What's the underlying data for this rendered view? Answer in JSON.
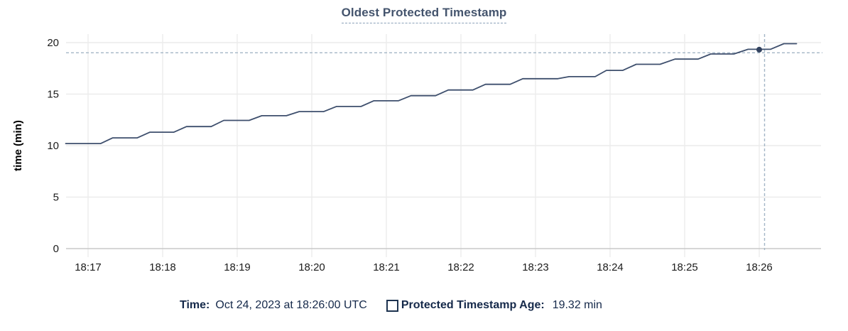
{
  "colors": {
    "line": "#3e4f6d",
    "dot": "#32425f",
    "grid": "#ececec",
    "axis": "#c9c9c9",
    "crosshair": "#a4b6c6",
    "title_text": "#44546d",
    "title_underline": "#8aa1b9",
    "tick_text": "#1c1c1c",
    "ylabel_text": "#000000",
    "legend_text": "#15294a",
    "checkbox_border": "#1d3350"
  },
  "legend": {
    "time_label": "Time:",
    "time_value": "Oct 24, 2023 at 18:26:00 UTC",
    "series_label": "Protected Timestamp Age:",
    "series_value": "19.32 min"
  },
  "chart_data": {
    "type": "line",
    "title": "Oldest Protected Timestamp",
    "xlabel": "",
    "ylabel": "time (min)",
    "y_ticks": [
      0,
      5,
      10,
      15,
      20
    ],
    "ylim": [
      0,
      21
    ],
    "grid": "on",
    "legend_position": "bottom",
    "x_tick_labels": [
      "18:17",
      "18:18",
      "18:19",
      "18:20",
      "18:21",
      "18:22",
      "18:23",
      "18:24",
      "18:25",
      "18:26"
    ],
    "x_unit": "minutes after 18:17 (times UTC)",
    "x_domain": [
      -0.3,
      9.8
    ],
    "series": [
      {
        "name": "Protected Timestamp Age",
        "points": [
          [
            -0.3,
            10.2
          ],
          [
            0.17,
            10.2
          ],
          [
            0.33,
            10.75
          ],
          [
            0.66,
            10.75
          ],
          [
            0.83,
            11.3
          ],
          [
            1.15,
            11.3
          ],
          [
            1.32,
            11.85
          ],
          [
            1.65,
            11.85
          ],
          [
            1.82,
            12.45
          ],
          [
            2.16,
            12.45
          ],
          [
            2.33,
            12.9
          ],
          [
            2.66,
            12.9
          ],
          [
            2.83,
            13.3
          ],
          [
            3.16,
            13.3
          ],
          [
            3.33,
            13.8
          ],
          [
            3.66,
            13.8
          ],
          [
            3.83,
            14.35
          ],
          [
            4.16,
            14.35
          ],
          [
            4.33,
            14.85
          ],
          [
            4.66,
            14.85
          ],
          [
            4.83,
            15.4
          ],
          [
            5.16,
            15.4
          ],
          [
            5.33,
            15.95
          ],
          [
            5.66,
            15.95
          ],
          [
            5.83,
            16.5
          ],
          [
            6.3,
            16.5
          ],
          [
            6.45,
            16.7
          ],
          [
            6.8,
            16.7
          ],
          [
            6.95,
            17.3
          ],
          [
            7.17,
            17.3
          ],
          [
            7.35,
            17.9
          ],
          [
            7.67,
            17.9
          ],
          [
            7.87,
            18.4
          ],
          [
            8.18,
            18.4
          ],
          [
            8.35,
            18.9
          ],
          [
            8.66,
            18.9
          ],
          [
            8.85,
            19.35
          ],
          [
            9.15,
            19.35
          ],
          [
            9.33,
            19.9
          ],
          [
            9.5,
            19.9
          ]
        ]
      }
    ],
    "hover": {
      "t": 9.0,
      "x_label": "18:26",
      "value": 19.32,
      "time_text": "Oct 24, 2023 at 18:26:00 UTC",
      "value_text": "19.32 min"
    }
  }
}
